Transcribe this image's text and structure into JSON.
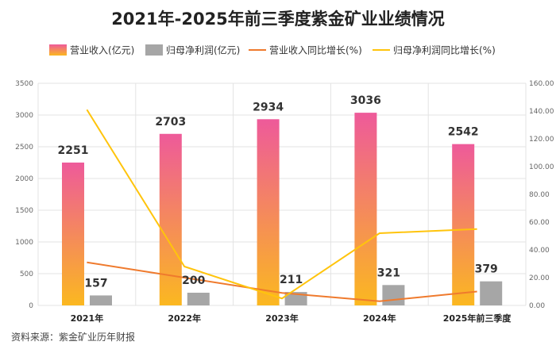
{
  "chart_data": {
    "type": "bar",
    "title": "2021年-2025年前三季度紫金矿业业绩情况",
    "categories": [
      "2021年",
      "2022年",
      "2023年",
      "2024年",
      "2025年前三季度"
    ],
    "series": [
      {
        "name": "营业收入(亿元)",
        "kind": "bar",
        "axis": "left",
        "values": [
          2251,
          2703,
          2934,
          3036,
          2542
        ],
        "color_top": "#ee5a9a",
        "color_bottom": "#fbb820"
      },
      {
        "name": "归母净利润(亿元)",
        "kind": "bar",
        "axis": "left",
        "values": [
          157,
          200,
          211,
          321,
          379
        ],
        "color": "#a6a6a6"
      },
      {
        "name": "营业收入同比增长(%)",
        "kind": "line",
        "axis": "right",
        "values": [
          31,
          20,
          9,
          3,
          10
        ],
        "color": "#ef7a2d"
      },
      {
        "name": "归母净利润同比增长(%)",
        "kind": "line",
        "axis": "right",
        "values": [
          141,
          28,
          5,
          52,
          55
        ],
        "color": "#ffc40c"
      }
    ],
    "left_axis": {
      "ylim": [
        0,
        3500
      ],
      "ticks": [
        "0",
        "500",
        "1000",
        "1500",
        "2000",
        "2500",
        "3000",
        "3500"
      ]
    },
    "right_axis": {
      "ylim": [
        0,
        160
      ],
      "ticks": [
        "0.00",
        "20.00",
        "40.00",
        "60.00",
        "80.00",
        "100.00",
        "120.00",
        "140.00",
        "160.00"
      ]
    },
    "xlabel": "",
    "ylabel": "",
    "grid": true,
    "legend_position": "top",
    "source": "资料来源：紫金矿业历年财报"
  }
}
